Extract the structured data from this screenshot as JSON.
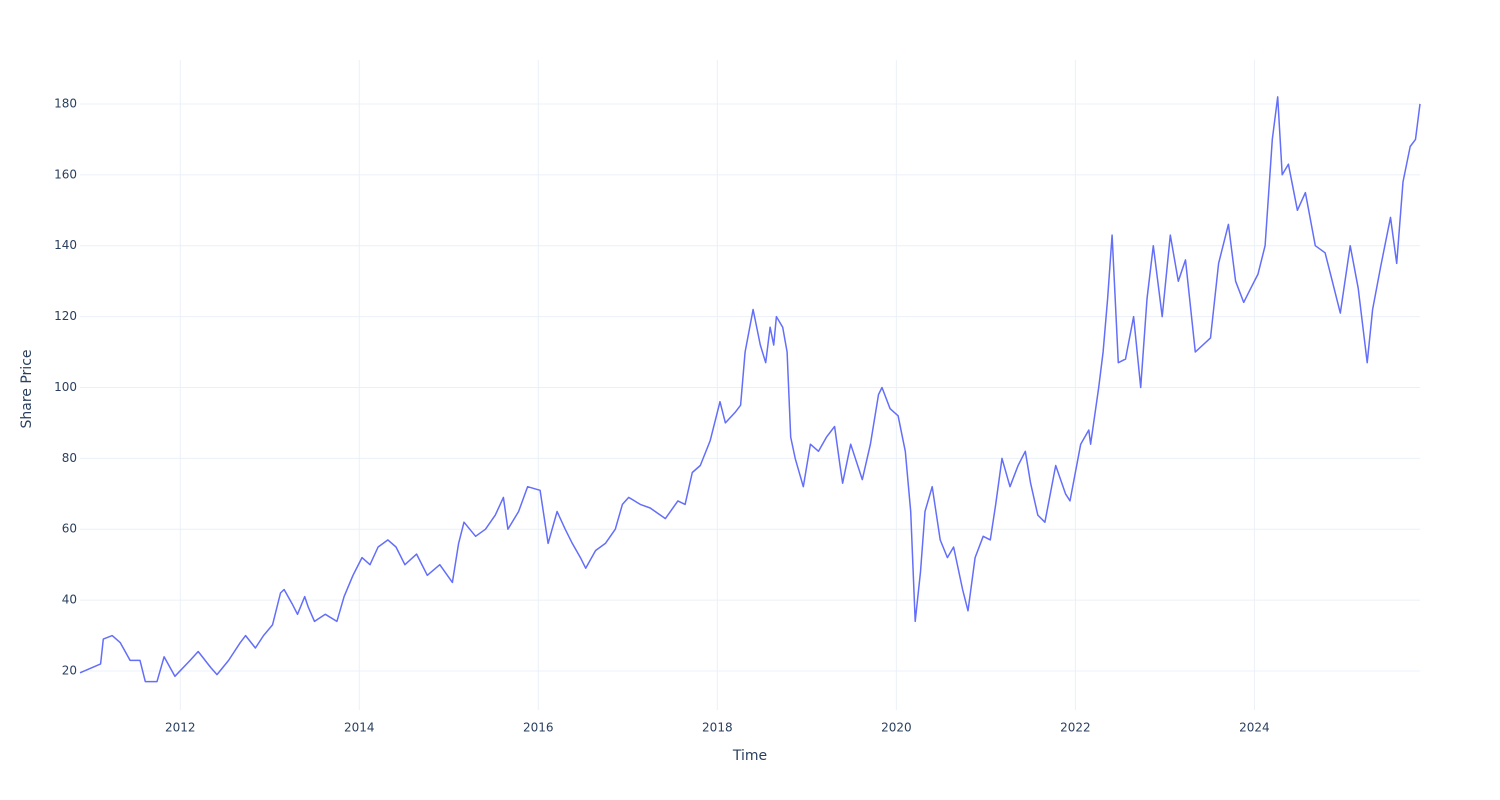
{
  "chart_data": {
    "type": "line",
    "x_label": "Time",
    "y_label": "Share Price",
    "x": [
      2010.88,
      2011.11,
      2011.14,
      2011.24,
      2011.33,
      2011.44,
      2011.55,
      2011.61,
      2011.74,
      2011.82,
      2011.94,
      2012.11,
      2012.2,
      2012.34,
      2012.41,
      2012.54,
      2012.67,
      2012.73,
      2012.84,
      2012.93,
      2013.03,
      2013.12,
      2013.16,
      2013.25,
      2013.31,
      2013.39,
      2013.43,
      2013.5,
      2013.62,
      2013.75,
      2013.83,
      2013.93,
      2014.03,
      2014.12,
      2014.21,
      2014.32,
      2014.41,
      2014.51,
      2014.64,
      2014.76,
      2014.9,
      2015.04,
      2015.11,
      2015.17,
      2015.3,
      2015.41,
      2015.52,
      2015.61,
      2015.66,
      2015.78,
      2015.88,
      2016.02,
      2016.11,
      2016.21,
      2016.3,
      2016.38,
      2016.47,
      2016.53,
      2016.64,
      2016.75,
      2016.86,
      2016.94,
      2017.01,
      2017.14,
      2017.25,
      2017.42,
      2017.56,
      2017.64,
      2017.72,
      2017.81,
      2017.92,
      2018.03,
      2018.09,
      2018.2,
      2018.26,
      2018.31,
      2018.4,
      2018.48,
      2018.54,
      2018.59,
      2018.63,
      2018.66,
      2018.73,
      2018.78,
      2018.82,
      2018.87,
      2018.96,
      2019.04,
      2019.13,
      2019.22,
      2019.31,
      2019.37,
      2019.4,
      2019.49,
      2019.62,
      2019.71,
      2019.8,
      2019.84,
      2019.93,
      2020.02,
      2020.1,
      2020.16,
      2020.21,
      2020.27,
      2020.32,
      2020.4,
      2020.49,
      2020.57,
      2020.64,
      2020.74,
      2020.8,
      2020.88,
      2020.97,
      2021.05,
      2021.11,
      2021.18,
      2021.27,
      2021.36,
      2021.44,
      2021.5,
      2021.58,
      2021.66,
      2021.78,
      2021.89,
      2021.94,
      2022.06,
      2022.15,
      2022.17,
      2022.26,
      2022.31,
      2022.36,
      2022.41,
      2022.48,
      2022.56,
      2022.65,
      2022.73,
      2022.8,
      2022.87,
      2022.97,
      2023.06,
      2023.15,
      2023.23,
      2023.34,
      2023.51,
      2023.6,
      2023.71,
      2023.79,
      2023.88,
      2023.96,
      2024.04,
      2024.12,
      2024.2,
      2024.26,
      2024.31,
      2024.38,
      2024.48,
      2024.57,
      2024.68,
      2024.79,
      2024.87,
      2024.96,
      2025.07,
      2025.16,
      2025.26,
      2025.32,
      2025.41,
      2025.52,
      2025.59,
      2025.66,
      2025.74,
      2025.8,
      2025.85
    ],
    "series": [
      {
        "name": "Share Price",
        "color": "#636efa",
        "values": [
          19.5,
          22,
          29,
          30,
          28,
          23,
          23,
          17,
          17,
          24,
          18.5,
          23,
          25.5,
          21,
          19,
          23,
          28,
          30,
          26.5,
          30,
          33,
          42,
          43,
          39,
          36,
          41,
          38,
          34,
          36,
          34,
          41,
          47,
          52,
          50,
          55,
          57,
          55,
          50,
          53,
          47,
          50,
          45,
          56,
          62,
          58,
          60,
          64,
          69,
          60,
          65,
          72,
          71,
          56,
          65,
          60,
          56,
          52,
          49,
          54,
          56,
          60,
          67,
          69,
          67,
          66,
          63,
          68,
          67,
          76,
          78,
          85,
          96,
          90,
          93,
          95,
          110,
          122,
          112,
          107,
          117,
          112,
          120,
          117,
          110,
          86,
          80,
          72,
          84,
          82,
          86,
          89,
          78,
          73,
          84,
          74,
          84,
          98,
          100,
          94,
          92,
          82,
          65,
          34,
          48,
          65,
          72,
          57,
          52,
          55,
          43,
          37,
          52,
          58,
          57,
          67,
          80,
          72,
          78,
          82,
          73,
          64,
          62,
          78,
          70,
          68,
          84,
          88,
          84,
          100,
          110,
          125,
          143,
          107,
          108,
          120,
          100,
          125,
          140,
          120,
          143,
          130,
          136,
          110,
          114,
          135,
          146,
          130,
          124,
          128,
          132,
          140,
          170,
          182,
          160,
          163,
          150,
          155,
          140,
          138,
          130,
          121,
          140,
          128,
          107,
          122,
          134,
          148,
          135,
          158,
          168,
          170,
          180
        ]
      }
    ],
    "xlim": [
      2010.88,
      2025.85
    ],
    "xticks": [
      2012,
      2014,
      2016,
      2018,
      2020,
      2022,
      2024
    ],
    "ylim": [
      9,
      192.4
    ],
    "yticks": [
      20,
      40,
      60,
      80,
      100,
      120,
      140,
      160,
      180
    ],
    "grid": true
  }
}
